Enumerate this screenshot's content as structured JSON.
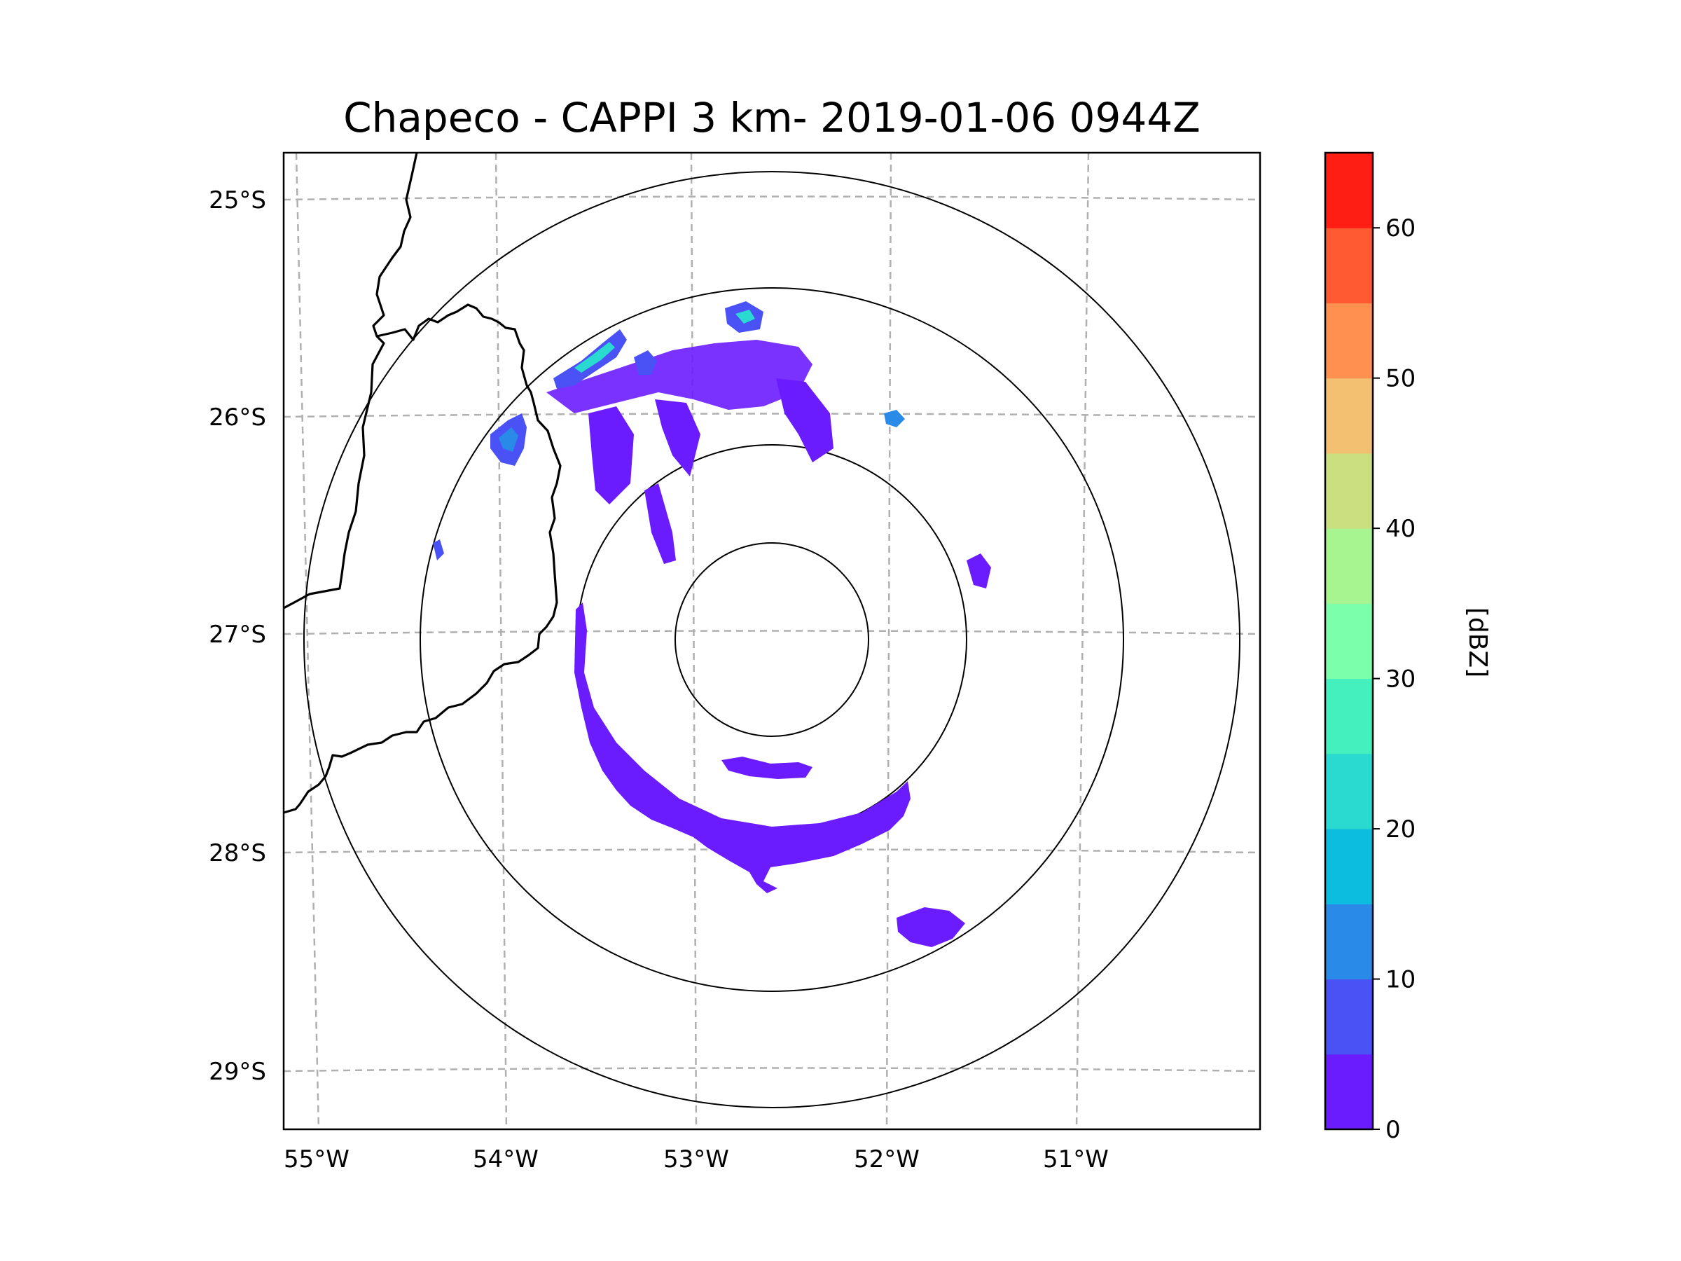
{
  "title": "Chapeco - CAPPI 3 km- 2019-01-06 0944Z",
  "map": {
    "lat_labels": [
      "25°S",
      "26°S",
      "27°S",
      "28°S",
      "29°S"
    ],
    "lon_labels": [
      "55°W",
      "54°W",
      "53°W",
      "52°W",
      "51°W"
    ],
    "lat_values": [
      -25,
      -26,
      -27,
      -28,
      -29
    ],
    "lon_values": [
      -55,
      -54,
      -53,
      -52,
      -51
    ],
    "range_rings": 4,
    "colors": {
      "ring": "#000000",
      "grid": "#b0b0b0",
      "border": "#000000",
      "echo": "#6a1cff"
    }
  },
  "colorbar": {
    "label": "[dBZ]",
    "tick_labels": [
      "0",
      "10",
      "20",
      "30",
      "40",
      "50",
      "60"
    ],
    "min": 0,
    "max": 65,
    "step": 5,
    "colors": [
      "#6a1cff",
      "#4a52f5",
      "#2a8ae8",
      "#0cbde0",
      "#2ad9d0",
      "#44f0be",
      "#7cffaa",
      "#a6f590",
      "#ccdf80",
      "#f2c070",
      "#ff9050",
      "#ff5a32",
      "#ff1e14"
    ]
  }
}
